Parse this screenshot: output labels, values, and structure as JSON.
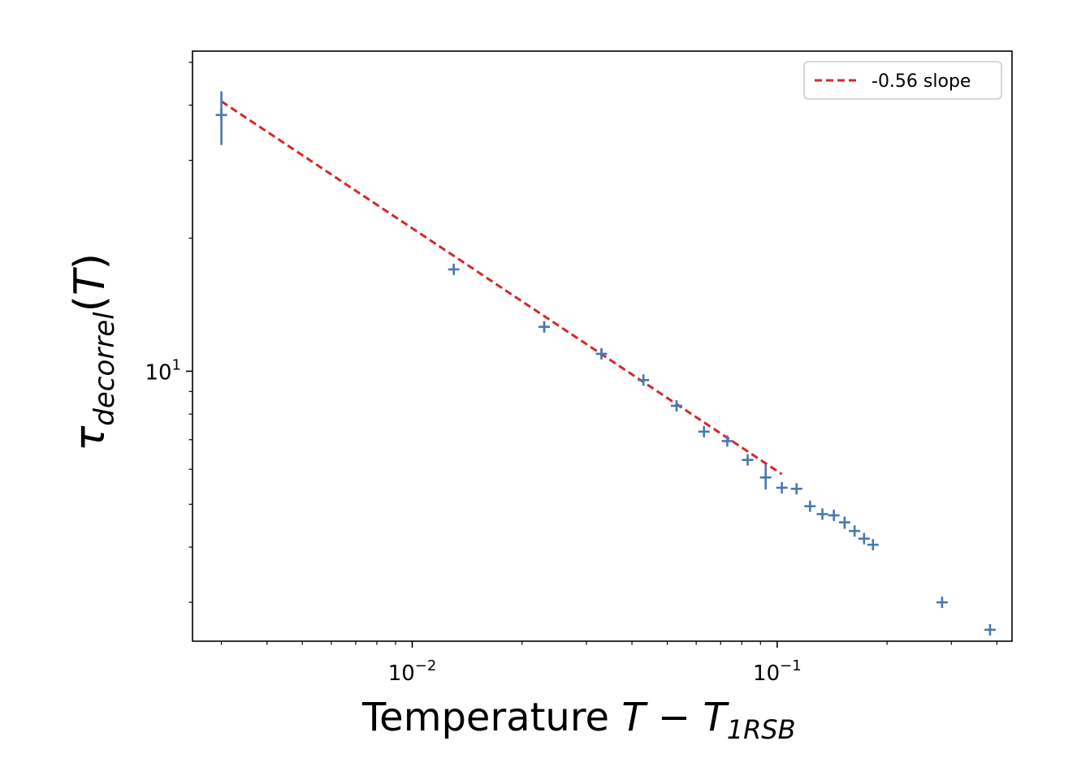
{
  "chart_data": {
    "type": "scatter",
    "title": "",
    "xscale": "log",
    "yscale": "log",
    "xlim": [
      0.0025,
      0.44
    ],
    "ylim": [
      2.45,
      53
    ],
    "xlabel": {
      "main": "Temperature ",
      "var": "T",
      "minus": " − ",
      "sub_var": "T",
      "sub": "1RSB"
    },
    "ylabel": {
      "symbol": "τ",
      "sub": "decorrel",
      "paren_open": "(",
      "var": "T",
      "paren_close": ")"
    },
    "x_ticks": [
      {
        "value": 0.01,
        "base": "10",
        "exp": "−2"
      },
      {
        "value": 0.1,
        "base": "10",
        "exp": "−1"
      }
    ],
    "y_ticks": [
      {
        "value": 10,
        "base": "10",
        "exp": "1"
      }
    ],
    "grid": false,
    "legend": {
      "position": "top-right",
      "entries": [
        {
          "label": "-0.56 slope",
          "style": "dashed",
          "color": "#d62728"
        }
      ]
    },
    "fit_line": {
      "name": "-0.56 slope",
      "slope": -0.56,
      "color": "#d62728",
      "x": [
        0.003,
        0.103
      ],
      "y": [
        40.8,
        5.85
      ]
    },
    "series": [
      {
        "color": "#4a78b0",
        "marker": "plus",
        "points": [
          {
            "x": 0.003,
            "y": 38.0,
            "yerr_low": 32.5,
            "yerr_high": 43.0
          },
          {
            "x": 0.013,
            "y": 17.0,
            "yerr_low": 16.6,
            "yerr_high": 17.4
          },
          {
            "x": 0.023,
            "y": 12.6,
            "yerr_low": 12.25,
            "yerr_high": 12.95
          },
          {
            "x": 0.033,
            "y": 10.95,
            "yerr_low": 10.7,
            "yerr_high": 11.2
          },
          {
            "x": 0.043,
            "y": 9.55
          },
          {
            "x": 0.053,
            "y": 8.35
          },
          {
            "x": 0.063,
            "y": 7.3
          },
          {
            "x": 0.073,
            "y": 6.95
          },
          {
            "x": 0.083,
            "y": 6.3
          },
          {
            "x": 0.093,
            "y": 5.75,
            "yerr_low": 5.4,
            "yerr_high": 6.15
          },
          {
            "x": 0.103,
            "y": 5.45
          },
          {
            "x": 0.113,
            "y": 5.42
          },
          {
            "x": 0.123,
            "y": 4.95
          },
          {
            "x": 0.133,
            "y": 4.75
          },
          {
            "x": 0.143,
            "y": 4.72
          },
          {
            "x": 0.153,
            "y": 4.55,
            "yerr_low": 4.4,
            "yerr_high": 4.68
          },
          {
            "x": 0.163,
            "y": 4.35
          },
          {
            "x": 0.173,
            "y": 4.18
          },
          {
            "x": 0.183,
            "y": 4.05
          },
          {
            "x": 0.283,
            "y": 3.0
          },
          {
            "x": 0.383,
            "y": 2.6
          }
        ]
      }
    ]
  }
}
